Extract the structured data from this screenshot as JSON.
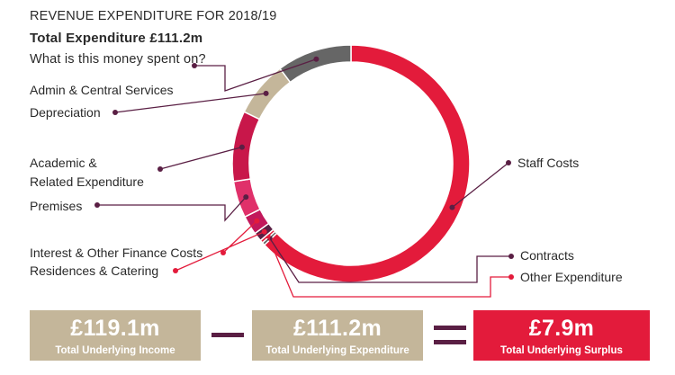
{
  "header": {
    "title": "REVENUE EXPENDITURE FOR 2018/19",
    "subtitle": "Total Expenditure £111.2m",
    "question": "What is this money spent on?"
  },
  "chart_data": {
    "type": "pie",
    "style": "donut",
    "title": "REVENUE EXPENDITURE FOR 2018/19",
    "subtitle": "Total Expenditure £111.2m",
    "note": "approximate shares estimated from arc lengths",
    "slices": [
      {
        "label": "Staff Costs",
        "value": 63.0,
        "color": "#e31b3b"
      },
      {
        "label": "Contracts",
        "value": 0.4,
        "color": "#5a5a5a"
      },
      {
        "label": "Other Expenditure",
        "value": 0.4,
        "color": "#e31b3b"
      },
      {
        "label": "Residences & Catering",
        "value": 1.2,
        "color": "#5a1f44"
      },
      {
        "label": "Interest & Other Finance Costs",
        "value": 2.6,
        "color": "#c2185b"
      },
      {
        "label": "Premises",
        "value": 5.0,
        "color": "#e0306a"
      },
      {
        "label": "Academic & Related Expenditure",
        "value": 9.6,
        "color": "#c8174a"
      },
      {
        "label": "Depreciation",
        "value": 7.6,
        "color": "#c4b69a"
      },
      {
        "label": "Admin & Central Services",
        "value": 10.2,
        "color": "#666666"
      }
    ]
  },
  "summary": {
    "income": {
      "value": "£119.1m",
      "label": "Total Underlying Income"
    },
    "expenditure": {
      "value": "£111.2m",
      "label": "Total Underlying Expenditure"
    },
    "surplus": {
      "value": "£7.9m",
      "label": "Total Underlying Surplus"
    }
  },
  "colors": {
    "red": "#e31b3b",
    "tan": "#c4b69a",
    "plum": "#5a1f44",
    "grey": "#666666"
  }
}
